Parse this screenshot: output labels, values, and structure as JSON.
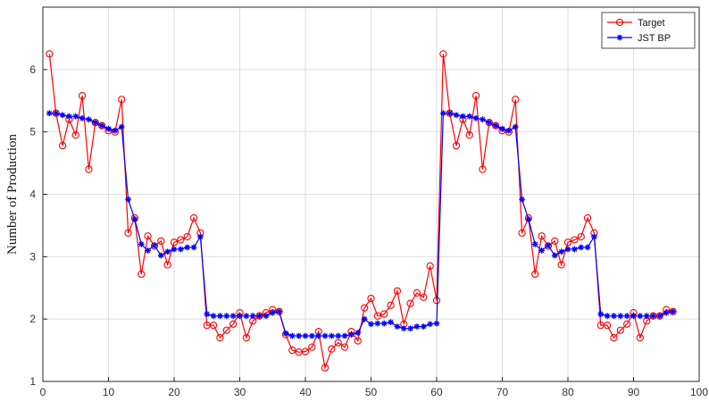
{
  "chart_data": {
    "type": "line",
    "title": "",
    "xlabel": "",
    "ylabel": "Number of Production",
    "xlim": [
      0,
      100
    ],
    "ylim": [
      1,
      7
    ],
    "xticks": [
      0,
      10,
      20,
      30,
      40,
      50,
      60,
      70,
      80,
      90,
      100
    ],
    "yticks": [
      1,
      2,
      3,
      4,
      5,
      6
    ],
    "grid": true,
    "legend_position": "top-right",
    "x": [
      1,
      2,
      3,
      4,
      5,
      6,
      7,
      8,
      9,
      10,
      11,
      12,
      13,
      14,
      15,
      16,
      17,
      18,
      19,
      20,
      21,
      22,
      23,
      24,
      25,
      26,
      27,
      28,
      29,
      30,
      31,
      32,
      33,
      34,
      35,
      36,
      37,
      38,
      39,
      40,
      41,
      42,
      43,
      44,
      45,
      46,
      47,
      48,
      49,
      50,
      51,
      52,
      53,
      54,
      55,
      56,
      57,
      58,
      59,
      60,
      61,
      62,
      63,
      64,
      65,
      66,
      67,
      68,
      69,
      70,
      71,
      72,
      73,
      74,
      75,
      76,
      77,
      78,
      79,
      80,
      81,
      82,
      83,
      84,
      85,
      86,
      87,
      88,
      89,
      90,
      91,
      92,
      93,
      94,
      95,
      96
    ],
    "series": [
      {
        "name": "Target",
        "color": "#ff0000",
        "marker": "circle",
        "values": [
          6.25,
          5.3,
          4.78,
          5.2,
          4.95,
          5.58,
          4.4,
          5.15,
          5.1,
          5.02,
          5.0,
          5.52,
          3.38,
          3.62,
          2.72,
          3.33,
          3.17,
          3.25,
          2.87,
          3.23,
          3.27,
          3.32,
          3.62,
          3.38,
          1.9,
          1.9,
          1.7,
          1.82,
          1.92,
          2.1,
          1.7,
          1.97,
          2.05,
          2.1,
          2.15,
          2.12,
          1.75,
          1.5,
          1.47,
          1.48,
          1.55,
          1.8,
          1.22,
          1.52,
          1.62,
          1.55,
          1.8,
          1.65,
          2.18,
          2.33,
          2.05,
          2.08,
          2.22,
          2.45,
          1.92,
          2.25,
          2.42,
          2.35,
          2.85,
          2.3,
          6.25,
          5.3,
          4.78,
          5.2,
          4.95,
          5.58,
          4.4,
          5.15,
          5.1,
          5.02,
          5.0,
          5.52,
          3.38,
          3.62,
          2.72,
          3.33,
          3.17,
          3.25,
          2.87,
          3.23,
          3.27,
          3.32,
          3.62,
          3.38,
          1.9,
          1.9,
          1.7,
          1.82,
          1.92,
          2.1,
          1.7,
          1.97,
          2.05,
          2.05,
          2.15,
          2.12
        ]
      },
      {
        "name": "JST BP",
        "color": "#0000ff",
        "marker": "star",
        "values": [
          5.3,
          5.3,
          5.27,
          5.25,
          5.25,
          5.22,
          5.2,
          5.15,
          5.1,
          5.05,
          5.02,
          5.08,
          3.92,
          3.6,
          3.2,
          3.1,
          3.18,
          3.02,
          3.08,
          3.12,
          3.12,
          3.15,
          3.15,
          3.32,
          2.08,
          2.05,
          2.05,
          2.05,
          2.05,
          2.05,
          2.05,
          2.05,
          2.05,
          2.05,
          2.1,
          2.12,
          1.77,
          1.73,
          1.73,
          1.73,
          1.73,
          1.73,
          1.73,
          1.73,
          1.73,
          1.73,
          1.75,
          1.78,
          2.0,
          1.92,
          1.93,
          1.93,
          1.95,
          1.88,
          1.85,
          1.85,
          1.88,
          1.88,
          1.92,
          1.93,
          5.3,
          5.3,
          5.27,
          5.25,
          5.25,
          5.22,
          5.2,
          5.15,
          5.1,
          5.05,
          5.02,
          5.08,
          3.92,
          3.6,
          3.2,
          3.1,
          3.18,
          3.02,
          3.08,
          3.12,
          3.12,
          3.15,
          3.15,
          3.32,
          2.08,
          2.05,
          2.05,
          2.05,
          2.05,
          2.05,
          2.05,
          2.05,
          2.05,
          2.05,
          2.1,
          2.12
        ]
      }
    ]
  }
}
